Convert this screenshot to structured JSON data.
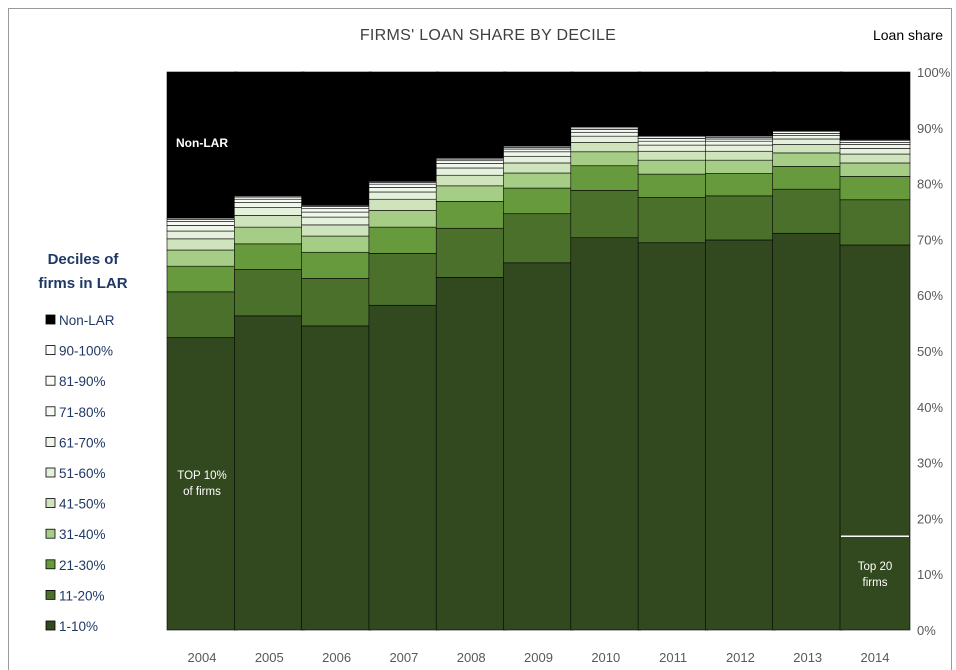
{
  "chart_data": {
    "type": "bar",
    "stacked": true,
    "title": "FIRMS' LOAN SHARE BY DECILE",
    "ylabel": "Loan share",
    "ylim": [
      0,
      100
    ],
    "yticks": [
      "0%",
      "10%",
      "20%",
      "30%",
      "40%",
      "50%",
      "60%",
      "70%",
      "80%",
      "90%",
      "100%"
    ],
    "categories": [
      "2004",
      "2005",
      "2006",
      "2007",
      "2008",
      "2009",
      "2010",
      "2011",
      "2012",
      "2013",
      "2014"
    ],
    "legend": {
      "title_lines": [
        "Deciles of",
        "firms in LAR"
      ],
      "placement": "left"
    },
    "series": [
      {
        "name": "1-10%",
        "color": "#32491f",
        "values": [
          52.4,
          56.3,
          54.5,
          58.2,
          63.2,
          65.8,
          70.3,
          69.4,
          69.9,
          71.1,
          69.0
        ]
      },
      {
        "name": "11-20%",
        "color": "#4b702c",
        "values": [
          8.2,
          8.3,
          8.5,
          9.3,
          8.8,
          8.8,
          8.5,
          8.1,
          7.9,
          7.9,
          8.1
        ]
      },
      {
        "name": "21-30%",
        "color": "#669a3c",
        "values": [
          4.6,
          4.6,
          4.7,
          4.7,
          4.8,
          4.6,
          4.4,
          4.2,
          4.0,
          4.1,
          4.2
        ]
      },
      {
        "name": "31-40%",
        "color": "#a6cd85",
        "values": [
          2.9,
          3.0,
          2.9,
          3.0,
          2.8,
          2.7,
          2.5,
          2.5,
          2.4,
          2.4,
          2.4
        ]
      },
      {
        "name": "41-50%",
        "color": "#cfe4bd",
        "values": [
          2.0,
          2.1,
          2.0,
          2.0,
          1.9,
          1.8,
          1.7,
          1.6,
          1.6,
          1.5,
          1.6
        ]
      },
      {
        "name": "51-60%",
        "color": "#e6f1dd",
        "values": [
          1.4,
          1.4,
          1.4,
          1.3,
          1.3,
          1.2,
          1.1,
          1.1,
          1.1,
          1.0,
          1.0
        ]
      },
      {
        "name": "61-70%",
        "color": "#eff6ea",
        "values": [
          1.0,
          0.9,
          0.9,
          0.8,
          0.8,
          0.8,
          0.7,
          0.7,
          0.7,
          0.6,
          0.7
        ]
      },
      {
        "name": "71-80%",
        "color": "#f7faf4",
        "values": [
          0.7,
          0.6,
          0.6,
          0.6,
          0.5,
          0.5,
          0.5,
          0.5,
          0.4,
          0.4,
          0.4
        ]
      },
      {
        "name": "81-90%",
        "color": "#fbfdf9",
        "values": [
          0.4,
          0.4,
          0.4,
          0.3,
          0.3,
          0.3,
          0.3,
          0.3,
          0.3,
          0.3,
          0.3
        ]
      },
      {
        "name": "90-100%",
        "color": "#ffffff",
        "values": [
          0.2,
          0.2,
          0.2,
          0.2,
          0.2,
          0.2,
          0.2,
          0.2,
          0.2,
          0.2,
          0.2
        ]
      },
      {
        "name": "Non-LAR",
        "color": "#000000",
        "values": [
          26.2,
          22.2,
          23.9,
          19.6,
          15.4,
          13.3,
          9.8,
          11.4,
          11.5,
          10.5,
          12.1
        ]
      }
    ],
    "annotations": {
      "non_lar": {
        "text": "Non-LAR",
        "category": "2004"
      },
      "top10": {
        "lines": [
          "TOP 10%",
          "of firms"
        ],
        "category": "2004"
      },
      "top20": {
        "lines": [
          "Top 20",
          "firms"
        ],
        "category": "2014",
        "value": 16.8
      }
    }
  }
}
